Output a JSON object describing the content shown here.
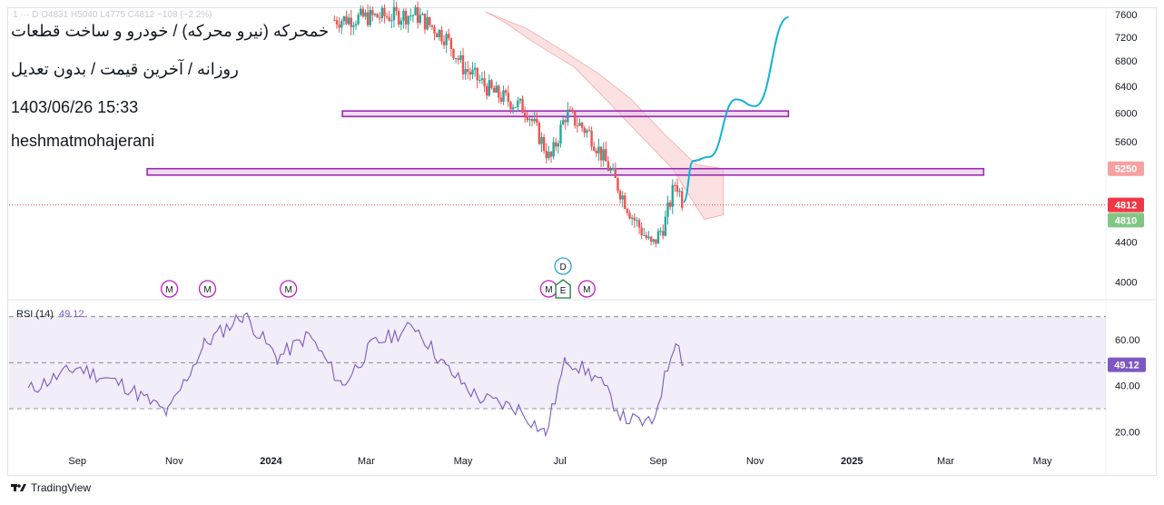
{
  "header": {
    "title": "خمحرکه (نیرو محرکه) / خودرو و ساخت قطعات",
    "subtitle": "روزانه / آخرین قیمت / بدون تعدیل",
    "datetime": "1403/06/26 15:33",
    "author": "heshmatmohajerani",
    "ohlc_strip": "1 ··· D  O4831  H5040  L4775  C4812  −108 (−2.2%)"
  },
  "footer": {
    "brand": "TradingView"
  },
  "colors": {
    "up": "#26a69a",
    "down": "#ef5350",
    "zone_border": "#9c27b0",
    "zone_fill": "#e1bee7",
    "cloud": "#f8c8c8",
    "rsi": "#7e57c2",
    "projection": "#12b2d3",
    "price_line": "#ef5350"
  },
  "chart_data": [
    {
      "type": "candlestick",
      "title": "خمحرکه (نیرو محرکه) / خودرو و ساخت قطعات",
      "x_ticks": [
        "Sep",
        "Nov",
        "2024",
        "Mar",
        "May",
        "Jul",
        "Sep",
        "Nov",
        "2025",
        "Mar",
        "May"
      ],
      "y_ticks": [
        4000,
        4400,
        4810,
        5250,
        5600,
        6000,
        6400,
        6800,
        7200,
        7600
      ],
      "ylim": [
        3850,
        7700
      ],
      "series": [
        {
          "name": "price",
          "points": [
            {
              "date": "2024-02-10",
              "close": 7500
            },
            {
              "date": "2024-03-01",
              "close": 7550
            },
            {
              "date": "2024-04-01",
              "close": 7600
            },
            {
              "date": "2024-04-20",
              "close": 7200
            },
            {
              "date": "2024-05-01",
              "close": 6700
            },
            {
              "date": "2024-05-20",
              "close": 6300
            },
            {
              "date": "2024-06-10",
              "close": 6050
            },
            {
              "date": "2024-06-25",
              "close": 5350
            },
            {
              "date": "2024-07-05",
              "close": 6000
            },
            {
              "date": "2024-07-20",
              "close": 5700
            },
            {
              "date": "2024-08-01",
              "close": 5250
            },
            {
              "date": "2024-08-15",
              "close": 4700
            },
            {
              "date": "2024-08-28",
              "close": 4350
            },
            {
              "date": "2024-09-05",
              "close": 4600
            },
            {
              "date": "2024-09-12",
              "close": 5100
            },
            {
              "date": "2024-09-17",
              "close": 4812
            }
          ]
        }
      ],
      "last_price": {
        "label": "4812",
        "value": 4812
      },
      "level_labels": [
        {
          "label": "5250",
          "value": 5250
        },
        {
          "label": "4810",
          "value": 4810
        }
      ],
      "zones": [
        {
          "name": "resistance",
          "from": 5950,
          "to": 6030
        },
        {
          "name": "support",
          "from": 5170,
          "to": 5250
        }
      ],
      "projection": [
        {
          "date": "2024-09-17",
          "value": 4850
        },
        {
          "date": "2024-09-23",
          "value": 5350
        },
        {
          "date": "2024-10-03",
          "value": 5400
        },
        {
          "date": "2024-10-20",
          "value": 6200
        },
        {
          "date": "2024-11-01",
          "value": 6100
        },
        {
          "date": "2024-11-22",
          "value": 7550
        }
      ],
      "event_markers": [
        {
          "label": "M",
          "date": "2023-10-29"
        },
        {
          "label": "M",
          "date": "2023-11-22"
        },
        {
          "label": "M",
          "date": "2024-01-12"
        },
        {
          "label": "M",
          "date": "2024-06-24"
        },
        {
          "label": "E",
          "date": "2024-07-03"
        },
        {
          "label": "D",
          "date": "2024-07-03"
        },
        {
          "label": "M",
          "date": "2024-07-18"
        }
      ]
    },
    {
      "type": "line",
      "title": "RSI (14)",
      "legend_label": "RSI (14)",
      "legend_value": "49.12",
      "last_value_label": "49.12",
      "y_ticks": [
        20,
        40,
        60
      ],
      "band": [
        30,
        70
      ],
      "midline": 50,
      "ylim": [
        15,
        75
      ],
      "series": [
        {
          "name": "RSI",
          "points": [
            {
              "date": "2023-08-01",
              "value": 38
            },
            {
              "date": "2023-09-01",
              "value": 48
            },
            {
              "date": "2023-10-01",
              "value": 40
            },
            {
              "date": "2023-10-28",
              "value": 28
            },
            {
              "date": "2023-11-20",
              "value": 58
            },
            {
              "date": "2023-12-15",
              "value": 71
            },
            {
              "date": "2024-01-05",
              "value": 52
            },
            {
              "date": "2024-01-25",
              "value": 62
            },
            {
              "date": "2024-02-15",
              "value": 40
            },
            {
              "date": "2024-03-05",
              "value": 58
            },
            {
              "date": "2024-04-01",
              "value": 66
            },
            {
              "date": "2024-04-20",
              "value": 48
            },
            {
              "date": "2024-05-10",
              "value": 35
            },
            {
              "date": "2024-06-05",
              "value": 30
            },
            {
              "date": "2024-06-22",
              "value": 19
            },
            {
              "date": "2024-07-05",
              "value": 52
            },
            {
              "date": "2024-07-25",
              "value": 43
            },
            {
              "date": "2024-08-10",
              "value": 26
            },
            {
              "date": "2024-08-28",
              "value": 23
            },
            {
              "date": "2024-09-12",
              "value": 61
            },
            {
              "date": "2024-09-17",
              "value": 49.12
            }
          ]
        }
      ]
    }
  ]
}
